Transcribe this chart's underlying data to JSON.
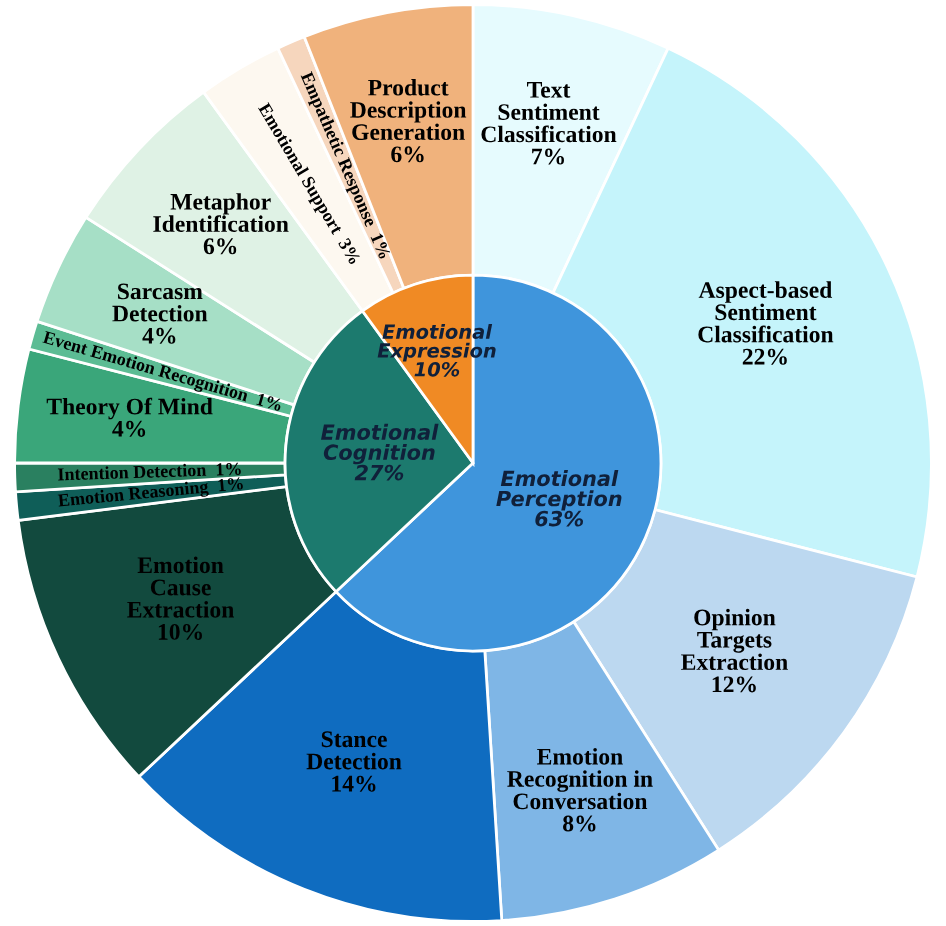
{
  "chart_data": {
    "type": "pie",
    "categories": [
      "Text\nSentiment\nClassification",
      "Aspect-based\nSentiment\nClassification",
      "Opinion\nTargets\nExtraction",
      "Emotion\nRecognition in\nConversation",
      "Stance\nDetection",
      "Emotion\nCause\nExtraction",
      "Emotion Reasoning",
      "Intention Detection",
      "Theory Of Mind",
      "Event Emotion Recognition",
      "Sarcasm\nDetection",
      "Metaphor\nIdentification",
      "Emotional Support",
      "Empathetic Response",
      "Product\nDescription\nGeneration"
    ],
    "series": [
      {
        "values": [
          7,
          22,
          12,
          8,
          14,
          10,
          1,
          1,
          4,
          1,
          4,
          6,
          3,
          1,
          6
        ],
        "value_labels": [
          "7%",
          "22%",
          "12%",
          "8%",
          "14%",
          "10%",
          "1%",
          "1%",
          "4%",
          "1%",
          "4%",
          "6%",
          "3%",
          "1%",
          "6%"
        ],
        "colors": [
          "#e6fbfe",
          "#c5f4fb",
          "#bcd8f0",
          "#7fb6e6",
          "#0f6cc0",
          "#124a3e",
          "#0f5e58",
          "#2a8060",
          "#3aa67a",
          "#5cbc94",
          "#a6dfc6",
          "#dff2e5",
          "#fdf8f0",
          "#f6d6bd",
          "#f0b27c"
        ]
      },
      {
        "values": [
          63,
          null,
          null,
          null,
          null,
          27,
          null,
          null,
          null,
          null,
          null,
          null,
          10,
          null,
          null
        ],
        "value_labels": [
          "63%",
          null,
          null,
          null,
          null,
          "27%",
          null,
          null,
          null,
          null,
          null,
          null,
          "10%",
          null,
          null
        ],
        "colors": [
          "#3f95dc",
          null,
          null,
          null,
          null,
          "#1c7a6e",
          null,
          null,
          null,
          null,
          null,
          null,
          "#f08a24",
          null,
          null
        ]
      }
    ],
    "annotations": [
      "Emotional\nPerception",
      "Emotional\nCognition",
      "Emotional\nExpression"
    ]
  }
}
